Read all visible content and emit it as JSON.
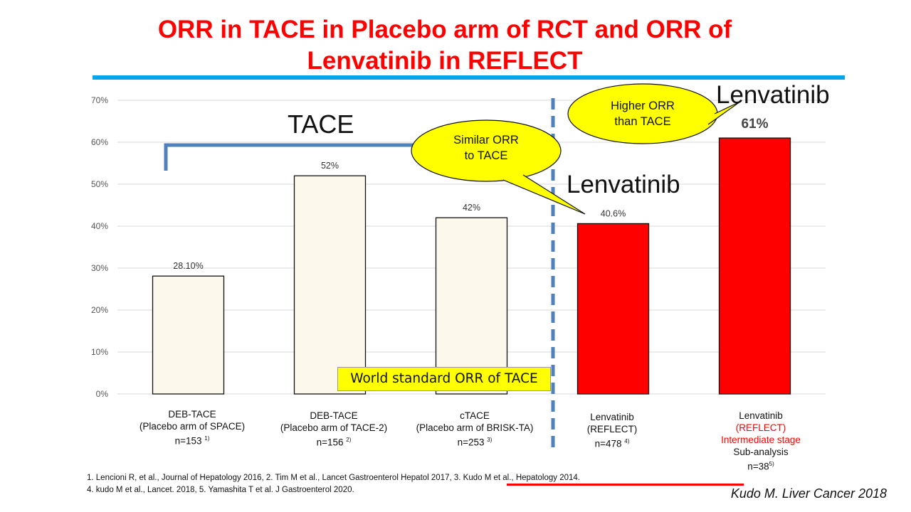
{
  "title": {
    "line1": "ORR in TACE in Placebo arm of RCT and ORR of",
    "line2": "Lenvatinib in REFLECT"
  },
  "colors": {
    "title": "#ff0000",
    "title_rule": "#00a6e8",
    "tace_bar": "#fdf8ec",
    "lenvatinib_bar": "#ff0000",
    "bracket": "#4f81bd",
    "divider": "#4f81bd",
    "callout": "#ffff00",
    "label_red": "#ff0000"
  },
  "chart_data": {
    "type": "bar",
    "ylim": [
      0,
      0.7
    ],
    "ytick_values": [
      0,
      0.1,
      0.2,
      0.3,
      0.4,
      0.5,
      0.6,
      0.7
    ],
    "ytick_labels": [
      "0%",
      "10%",
      "20%",
      "30%",
      "40%",
      "50%",
      "60%",
      "70%"
    ],
    "grid": true,
    "values": [
      0.281,
      0.52,
      0.42,
      0.406,
      0.61
    ],
    "data_labels": [
      "28.10%",
      "52%",
      "42%",
      "40.6%",
      "61%"
    ],
    "groups": [
      "TACE",
      "TACE",
      "TACE",
      "Lenvatinib",
      "Lenvatinib"
    ],
    "categories": [
      {
        "line1": "DEB-TACE",
        "line2": "(Placebo arm of SPACE)",
        "line3": "n=153",
        "ref": "1)"
      },
      {
        "line1": "DEB-TACE",
        "line2": "(Placebo arm of TACE-2)",
        "line3": "n=156",
        "ref": "2)"
      },
      {
        "line1": "cTACE",
        "line2": "(Placebo arm of BRISK-TA)",
        "line3": "n=253",
        "ref": "3)"
      },
      {
        "line1": "Lenvatinib",
        "line2": "(REFLECT)",
        "line3": "n=478",
        "ref": "4)"
      },
      {
        "line1": "Lenvatinib",
        "line2": "(REFLECT)",
        "line3": "Intermediate stage",
        "line4": "Sub-analysis",
        "line5": "n=38",
        "ref": "5)"
      }
    ]
  },
  "annotations": {
    "tace_group_label": "TACE",
    "lenvatinib_label_1": "Lenvatinib",
    "lenvatinib_label_2": "Lenvatinib",
    "callout_similar": {
      "line1": "Similar ORR",
      "line2": "to TACE"
    },
    "callout_higher": {
      "line1": "Higher ORR",
      "line2": "than TACE"
    },
    "world_standard": "World standard ORR of TACE"
  },
  "references": {
    "line1_a": "1. Lencioni R, et al., Journal of Hepatology 2016, 2. Tim M et al., Lancet Gastroenterol Hepatol 2017, ",
    "line1_b": "3. Kudo M et al., Hepatology 2014.",
    "line2": "4. kudo M et al., Lancet. 2018, 5. Yamashita T et al. J Gastroenterol 2020."
  },
  "source": "Kudo M.  Liver Cancer 2018"
}
